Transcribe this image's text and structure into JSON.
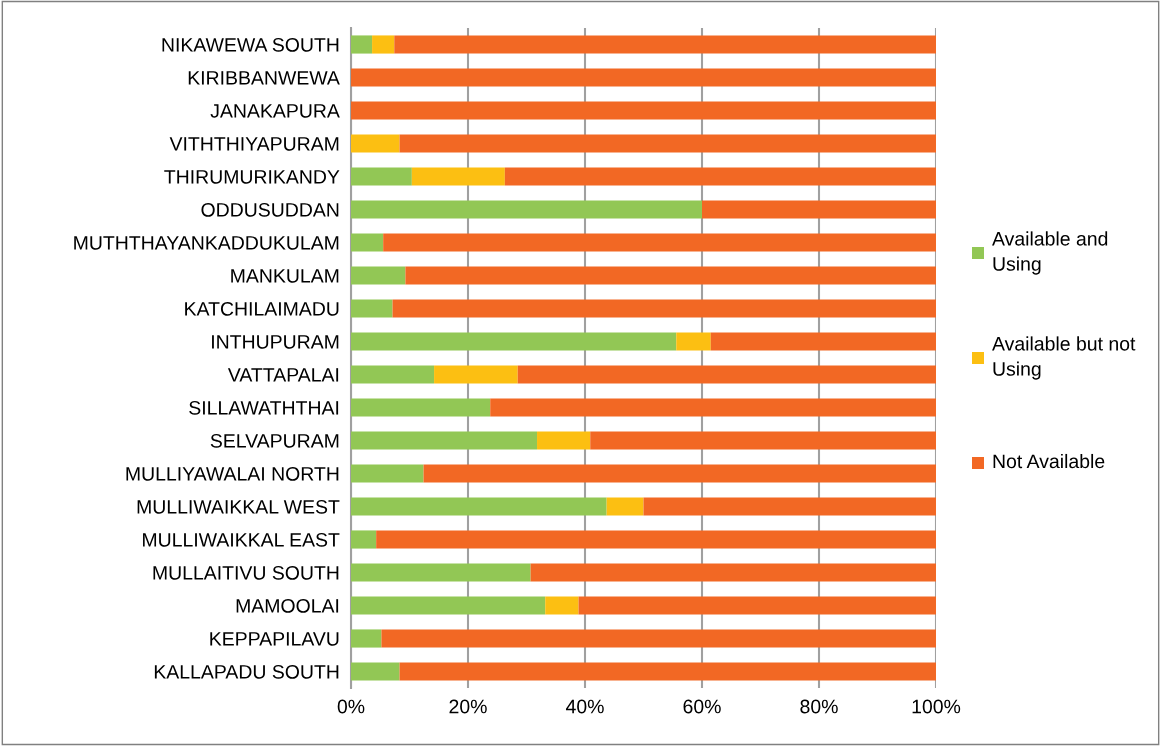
{
  "chart_data": {
    "type": "bar",
    "orientation": "horizontal",
    "stacked": true,
    "categories": [
      "NIKAWEWA SOUTH",
      "KIRIBBANWEWA",
      "JANAKAPURA",
      "VITHTHIYAPURAM",
      "THIRUMURIKANDY",
      "ODDUSUDDAN",
      "MUTHTHAYANKADDUKULAM",
      "MANKULAM",
      "KATCHILAIMADU",
      "INTHUPURAM",
      "VATTAPALAI",
      "SILLAWATHTHAI",
      "SELVAPURAM",
      "MULLIYAWALAI NORTH",
      "MULLIWAIKKAL WEST",
      "MULLIWAIKKAL EAST",
      "MULLAITIVU SOUTH",
      "MAMOOLAI",
      "KEPPAPILAVU",
      "KALLAPADU SOUTH"
    ],
    "series": [
      {
        "name": "Available and Using",
        "color": "#92c755",
        "values": [
          3.6,
          0,
          0,
          0,
          10.4,
          60,
          5.5,
          9.3,
          7.1,
          55.6,
          14.2,
          23.8,
          31.8,
          12.4,
          43.7,
          4.3,
          30.7,
          33.2,
          5.2,
          8.3
        ]
      },
      {
        "name": "Available but not Using",
        "color": "#fcbf12",
        "values": [
          3.8,
          0,
          0,
          8.3,
          15.9,
          0,
          0,
          0,
          0,
          5.9,
          14.3,
          0,
          9.1,
          0,
          6.3,
          0,
          0,
          5.7,
          0,
          0
        ]
      },
      {
        "name": "Not Available",
        "color": "#f26824",
        "values": [
          92.6,
          100,
          100,
          91.7,
          73.7,
          40,
          94.5,
          90.7,
          92.9,
          38.5,
          71.5,
          76.2,
          59.1,
          87.6,
          50,
          95.7,
          69.3,
          61.1,
          94.8,
          91.7
        ]
      }
    ],
    "xlim": [
      0,
      100
    ],
    "xticks": [
      {
        "value": 0,
        "label": "0%"
      },
      {
        "value": 20,
        "label": "20%"
      },
      {
        "value": 40,
        "label": "40%"
      },
      {
        "value": 60,
        "label": "60%"
      },
      {
        "value": 80,
        "label": "80%"
      },
      {
        "value": 100,
        "label": "100%"
      }
    ],
    "grid": "x",
    "legend": "right"
  }
}
